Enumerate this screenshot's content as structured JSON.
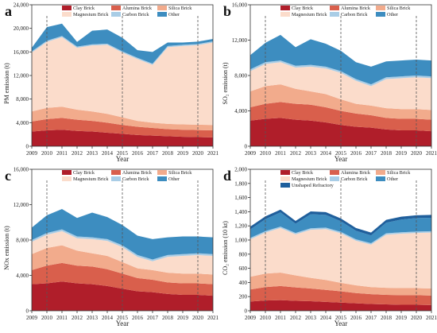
{
  "colors": {
    "Clay Brick": "#b01e2a",
    "Alumina Brick": "#d95f4c",
    "Silica Brick": "#f2ab8c",
    "Magnesium Brick": "#fbdccb",
    "Carbon Brick": "#a9cde6",
    "Other": "#3d8dc0",
    "Unshaped Refractory": "#1f5f9c"
  },
  "chart_data": [
    {
      "type": "area",
      "panel_letter": "a",
      "xlabel": "Year",
      "ylabel": "PM emission (t)",
      "x": [
        2009,
        2010,
        2011,
        2012,
        2013,
        2014,
        2015,
        2016,
        2017,
        2018,
        2019,
        2020,
        2021
      ],
      "ylim": [
        0,
        24000
      ],
      "yticks": [
        "0",
        "4,000",
        "8,000",
        "12,000",
        "16,000",
        "20,000",
        "24,000"
      ],
      "dashed_years": [
        2010,
        2015,
        2020
      ],
      "legend_cols": 3,
      "legend_rows": [
        [
          "Clay Brick",
          "Alumina Brick",
          "Silica Brick"
        ],
        [
          "Magnesium Brick",
          "Carbon Brick",
          "Other"
        ]
      ],
      "series": [
        {
          "name": "Clay Brick",
          "values": [
            2500,
            2700,
            2800,
            2600,
            2500,
            2300,
            2100,
            1900,
            1800,
            1700,
            1600,
            1550,
            1500
          ]
        },
        {
          "name": "Alumina Brick",
          "values": [
            1700,
            1900,
            2000,
            1900,
            1800,
            1700,
            1500,
            1400,
            1300,
            1200,
            1200,
            1200,
            1200
          ]
        },
        {
          "name": "Silica Brick",
          "values": [
            1700,
            1900,
            1900,
            1700,
            1600,
            1500,
            1300,
            1000,
            900,
            900,
            900,
            900,
            900
          ]
        },
        {
          "name": "Magnesium Brick",
          "values": [
            10000,
            11200,
            11800,
            10500,
            11200,
            11700,
            11000,
            10500,
            9800,
            13000,
            13300,
            13500,
            14000
          ]
        },
        {
          "name": "Carbon Brick",
          "values": [
            200,
            200,
            200,
            200,
            200,
            200,
            200,
            200,
            200,
            200,
            200,
            200,
            200
          ]
        },
        {
          "name": "Other",
          "values": [
            600,
            2300,
            2100,
            800,
            2300,
            2400,
            2300,
            1300,
            2000,
            600,
            400,
            400,
            400
          ]
        }
      ]
    },
    {
      "type": "area",
      "panel_letter": "b",
      "xlabel": "Year",
      "ylabel": "SO₂ emission (t)",
      "x": [
        2009,
        2010,
        2011,
        2012,
        2013,
        2014,
        2015,
        2016,
        2017,
        2018,
        2019,
        2020,
        2021
      ],
      "ylim": [
        0,
        16000
      ],
      "yticks": [
        "0",
        "4,000",
        "8,000",
        "12,000",
        "16,000"
      ],
      "dashed_years": [
        2010,
        2015,
        2020
      ],
      "legend_cols": 3,
      "legend_rows": [
        [
          "Clay Brick",
          "Alumina Brick",
          "Silica Brick"
        ],
        [
          "Magnesium Brick",
          "Carbon Brick",
          "Other"
        ]
      ],
      "series": [
        {
          "name": "Clay Brick",
          "values": [
            2900,
            3100,
            3200,
            3000,
            2900,
            2700,
            2400,
            2200,
            2100,
            1900,
            1800,
            1800,
            1700
          ]
        },
        {
          "name": "Alumina Brick",
          "values": [
            1500,
            1700,
            1800,
            1800,
            1800,
            1700,
            1600,
            1500,
            1400,
            1300,
            1300,
            1300,
            1300
          ]
        },
        {
          "name": "Silica Brick",
          "values": [
            1800,
            2000,
            2000,
            1700,
            1500,
            1500,
            1300,
            1100,
            1100,
            1100,
            1100,
            1100,
            1100
          ]
        },
        {
          "name": "Magnesium Brick",
          "values": [
            2300,
            2500,
            2500,
            2400,
            2800,
            2900,
            3000,
            2600,
            2200,
            3300,
            3500,
            3600,
            3600
          ]
        },
        {
          "name": "Carbon Brick",
          "values": [
            200,
            200,
            200,
            200,
            200,
            200,
            200,
            200,
            200,
            200,
            200,
            200,
            200
          ]
        },
        {
          "name": "Other",
          "values": [
            1600,
            2200,
            2900,
            2100,
            2900,
            2600,
            2300,
            1900,
            2000,
            1800,
            1800,
            1800,
            1800
          ]
        }
      ]
    },
    {
      "type": "area",
      "panel_letter": "c",
      "xlabel": "Year",
      "ylabel": "NOx emission (t)",
      "x": [
        2009,
        2010,
        2011,
        2012,
        2013,
        2014,
        2015,
        2016,
        2017,
        2018,
        2019,
        2020,
        2021
      ],
      "ylim": [
        0,
        16000
      ],
      "yticks": [
        "0",
        "4,000",
        "8,000",
        "12,000",
        "16,000"
      ],
      "dashed_years": [
        2010,
        2015,
        2020
      ],
      "legend_cols": 3,
      "legend_rows": [
        [
          "Clay Brick",
          "Alumina Brick",
          "Silica Brick"
        ],
        [
          "Magnesium Brick",
          "Carbon Brick",
          "Other"
        ]
      ],
      "series": [
        {
          "name": "Clay Brick",
          "values": [
            3000,
            3100,
            3300,
            3100,
            3000,
            2800,
            2500,
            2200,
            2100,
            1900,
            1800,
            1800,
            1700
          ]
        },
        {
          "name": "Alumina Brick",
          "values": [
            1600,
            2000,
            2100,
            2000,
            2000,
            1900,
            1700,
            1500,
            1400,
            1300,
            1300,
            1300,
            1300
          ]
        },
        {
          "name": "Silica Brick",
          "values": [
            1800,
            2000,
            2000,
            1700,
            1500,
            1500,
            1300,
            1100,
            1100,
            1100,
            1100,
            1100,
            1100
          ]
        },
        {
          "name": "Magnesium Brick",
          "values": [
            1400,
            1500,
            1600,
            1400,
            1600,
            1700,
            1700,
            1300,
            1000,
            1800,
            2000,
            2100,
            2100
          ]
        },
        {
          "name": "Carbon Brick",
          "values": [
            200,
            200,
            200,
            200,
            200,
            200,
            200,
            200,
            200,
            200,
            200,
            200,
            200
          ]
        },
        {
          "name": "Other",
          "values": [
            1400,
            2000,
            2300,
            2100,
            2800,
            2500,
            2300,
            2200,
            2300,
            2000,
            2000,
            1900,
            1900
          ]
        }
      ]
    },
    {
      "type": "area",
      "panel_letter": "d",
      "xlabel": "Year",
      "ylabel": "CO₂ emission (10 kt)",
      "x": [
        2009,
        2010,
        2011,
        2012,
        2013,
        2014,
        2015,
        2016,
        2017,
        2018,
        2019,
        2020,
        2021
      ],
      "ylim": [
        0,
        2000
      ],
      "yticks": [
        "0",
        "200",
        "400",
        "600",
        "800",
        "1,000",
        "1,200",
        "1,400",
        "1,600",
        "1,800",
        "2,000"
      ],
      "dashed_years": [
        2010,
        2015,
        2020
      ],
      "legend_cols": 3,
      "legend_rows": [
        [
          "Clay Brick",
          "Alumina Brick",
          "Silica Brick"
        ],
        [
          "Magnesium Brick",
          "Carbon Brick",
          "Other"
        ],
        [
          "Unshaped Refractory"
        ]
      ],
      "series": [
        {
          "name": "Clay Brick",
          "values": [
            130,
            145,
            150,
            140,
            135,
            125,
            115,
            105,
            95,
            90,
            85,
            85,
            80
          ]
        },
        {
          "name": "Alumina Brick",
          "values": [
            170,
            190,
            200,
            190,
            180,
            170,
            160,
            145,
            140,
            135,
            135,
            135,
            135
          ]
        },
        {
          "name": "Silica Brick",
          "values": [
            180,
            190,
            190,
            170,
            150,
            140,
            120,
            110,
            100,
            100,
            100,
            100,
            100
          ]
        },
        {
          "name": "Magnesium Brick",
          "values": [
            530,
            580,
            630,
            580,
            680,
            720,
            700,
            630,
            600,
            750,
            770,
            780,
            790
          ]
        },
        {
          "name": "Carbon Brick",
          "values": [
            20,
            20,
            20,
            20,
            20,
            20,
            20,
            20,
            20,
            20,
            20,
            20,
            20
          ]
        },
        {
          "name": "Other",
          "values": [
            120,
            170,
            200,
            130,
            200,
            180,
            150,
            120,
            110,
            150,
            180,
            190,
            190
          ]
        },
        {
          "name": "Unshaped Refractory",
          "values": [
            40,
            40,
            40,
            40,
            40,
            40,
            40,
            40,
            40,
            40,
            40,
            40,
            40
          ]
        }
      ]
    }
  ]
}
